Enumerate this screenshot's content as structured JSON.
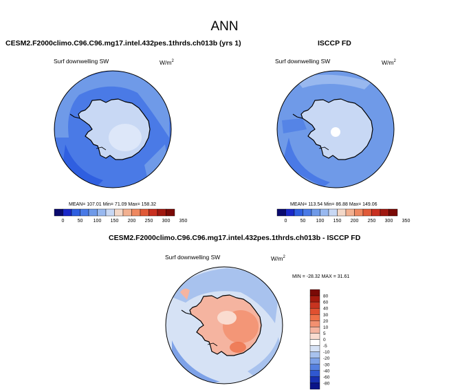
{
  "figure_title": "ANN",
  "panels": [
    {
      "title": "CESM2.F2000climo.C96.C96.mg17.intel.432pes.1thrds.ch013b (yrs 1)",
      "variable": "Surf downwelling SW",
      "units": "W/m",
      "units_sup": "2",
      "stats": "MEAN= 107.01  Min= 71.09  Max= 158.32"
    },
    {
      "title": "ISCCP FD",
      "variable": "Surf downwelling SW",
      "units": "W/m",
      "units_sup": "2",
      "stats": "MEAN= 113.54  Min= 86.88  Max= 149.06"
    },
    {
      "title": "CESM2.F2000climo.C96.C96.mg17.intel.432pes.1thrds.ch013b - ISCCP FD",
      "variable": "Surf downwelling SW",
      "units": "W/m",
      "units_sup": "2",
      "stats": "MIN = -28.32 MAX =  31.61"
    }
  ],
  "abs_colorbar": {
    "labels": [
      "0",
      "50",
      "100",
      "150",
      "200",
      "250",
      "300",
      "350"
    ],
    "colors": [
      "#0a0a6e",
      "#1a28c8",
      "#2f5fe0",
      "#4a7ae6",
      "#6f9ae8",
      "#98b8ef",
      "#c8d8f4",
      "#f3d8c8",
      "#f2b090",
      "#ee8860",
      "#e05a38",
      "#c83020",
      "#a01810",
      "#7a0a06"
    ]
  },
  "diff_colorbar": {
    "labels": [
      "80",
      "60",
      "40",
      "30",
      "20",
      "10",
      "5",
      "0",
      "-5",
      "-10",
      "-20",
      "-30",
      "-40",
      "-60",
      "-80"
    ],
    "colors": [
      "#7a0a06",
      "#a51a0e",
      "#c83420",
      "#e05030",
      "#ee7048",
      "#f29070",
      "#f5b4a0",
      "#fadcd0",
      "#ffffff",
      "#d6e2f5",
      "#a8c2ee",
      "#7ea2e8",
      "#5580e0",
      "#3058d0",
      "#1830b0",
      "#0a1488"
    ]
  }
}
